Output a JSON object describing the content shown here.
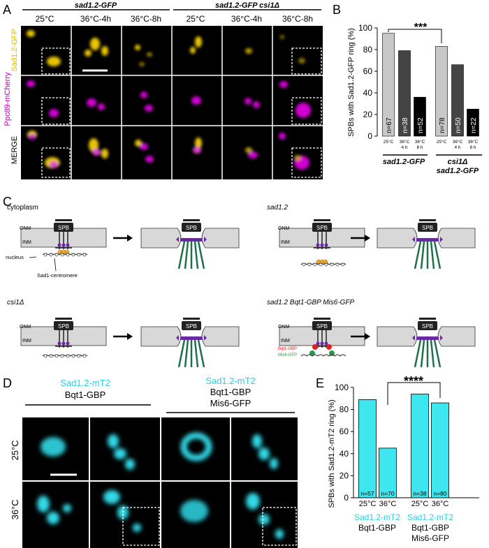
{
  "panel_letters": {
    "a": "A",
    "b": "B",
    "c": "C",
    "d": "D",
    "e": "E"
  },
  "panel_a": {
    "groups": [
      "sad1.2-GFP",
      "sad1.2-GFP csi1Δ"
    ],
    "columns": [
      "25°C",
      "36°C-4h",
      "36°C-8h",
      "25°C",
      "36°C-4h",
      "36°C-8h"
    ],
    "rows": [
      {
        "label": "Sad1.2-GFP",
        "color": "#e6c200"
      },
      {
        "label": "Ppc89-mCherry",
        "color": "#c000c0"
      },
      {
        "label": "MERGE",
        "color": "#111111"
      }
    ]
  },
  "panel_b": {
    "type": "bar",
    "ylabel": "SPBs with Sad1.2-GFP ring (%)",
    "ylim": [
      0,
      100
    ],
    "yticks": [
      0,
      20,
      40,
      60,
      80,
      100
    ],
    "categories": [
      [
        "25°C"
      ],
      [
        "36°C",
        "4 h"
      ],
      [
        "36°C",
        "8 h"
      ],
      [
        "25°C"
      ],
      [
        "36°C",
        "4 h"
      ],
      [
        "36°C",
        "8 h"
      ]
    ],
    "values": [
      95,
      79,
      36,
      83,
      66,
      25
    ],
    "n_labels": [
      "n=67",
      "n=38",
      "n=52",
      "n=78",
      "n=50",
      "n=22"
    ],
    "bar_colors": [
      "#c8c8c8",
      "#444444",
      "#000000",
      "#c8c8c8",
      "#444444",
      "#000000"
    ],
    "groups": [
      [
        "sad1.2-GFP"
      ],
      [
        "csi1Δ",
        "sad1.2-GFP"
      ]
    ],
    "significance": "***"
  },
  "panel_c": {
    "titles": [
      "cytoplasm",
      "sad1.2",
      "csi1Δ",
      "sad1.2 Bqt1-GBP Mis6-GFP"
    ],
    "onm": "ONM",
    "inm": "INM",
    "spb": "SPB",
    "nucleus": "nucleus",
    "sad1_centromere": "Sad1-centromere",
    "bqt1_gbp": "Bqt1-GBP",
    "mis6_gfp": "Mis6-GFP"
  },
  "panel_d": {
    "headers": [
      {
        "line1": "Sad1.2-mT2",
        "line2": "Bqt1-GBP",
        "line3": ""
      },
      {
        "line1": "Sad1.2-mT2",
        "line2": "Bqt1-GBP",
        "line3": "Mis6-GFP"
      }
    ],
    "rows": [
      "25°C",
      "36°C"
    ]
  },
  "chart_data": {
    "type": "bar",
    "ylabel": "SPBs with Sad1.2-mT2 ring (%)",
    "ylim": [
      0,
      100
    ],
    "yticks": [
      0,
      20,
      40,
      60,
      80,
      100
    ],
    "categories": [
      "25°C",
      "36°C",
      "25°C",
      "36°C"
    ],
    "values": [
      89,
      45,
      94,
      86
    ],
    "n_labels": [
      "n=57",
      "n=70",
      "n=38",
      "n=80"
    ],
    "bar_color": "#3ee6f0",
    "groups": [
      [
        "Sad1.2-mT2",
        "Bqt1-GBP"
      ],
      [
        "Sad1.2-mT2",
        "Bqt1-GBP",
        "Mis6-GFP"
      ]
    ],
    "group_highlight_color": "#27d3e6",
    "significance": "****"
  }
}
